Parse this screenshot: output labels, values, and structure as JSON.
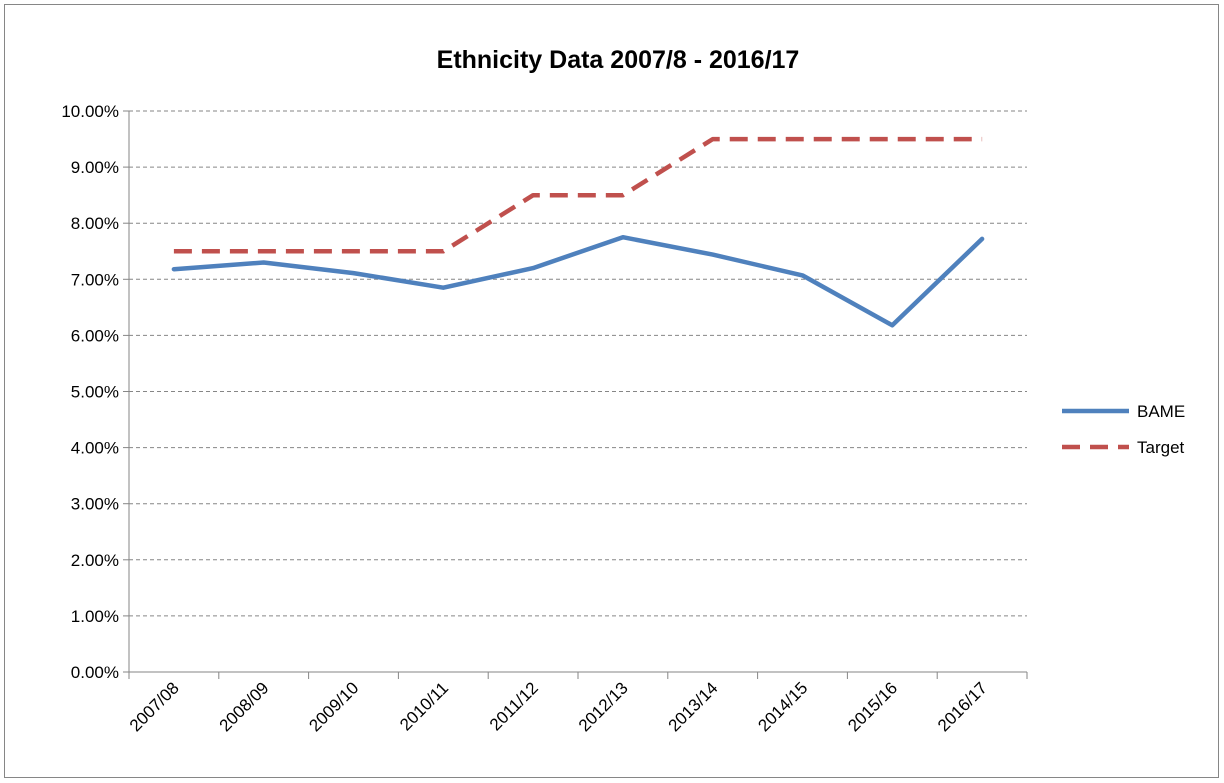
{
  "chart_data": {
    "type": "line",
    "title": "Ethnicity Data 2007/8 - 2016/17",
    "xlabel": "",
    "ylabel": "",
    "categories": [
      "2007/08",
      "2008/09",
      "2009/10",
      "2010/11",
      "2011/12",
      "2012/13",
      "2013/14",
      "2014/15",
      "2015/16",
      "2016/17"
    ],
    "ylim": [
      0,
      0.1
    ],
    "y_ticks": [
      "0.00%",
      "1.00%",
      "2.00%",
      "3.00%",
      "4.00%",
      "5.00%",
      "6.00%",
      "7.00%",
      "8.00%",
      "9.00%",
      "10.00%"
    ],
    "grid": true,
    "legend_position": "right",
    "series": [
      {
        "name": "BAME",
        "color": "#4F81BD",
        "dashed": false,
        "values": [
          0.0718,
          0.073,
          0.0711,
          0.0685,
          0.072,
          0.0775,
          0.0744,
          0.0707,
          0.0618,
          0.0772
        ]
      },
      {
        "name": "Target",
        "color": "#C0504D",
        "dashed": true,
        "values": [
          0.075,
          0.075,
          0.075,
          0.075,
          0.085,
          0.085,
          0.095,
          0.095,
          0.095,
          0.095
        ]
      }
    ]
  }
}
